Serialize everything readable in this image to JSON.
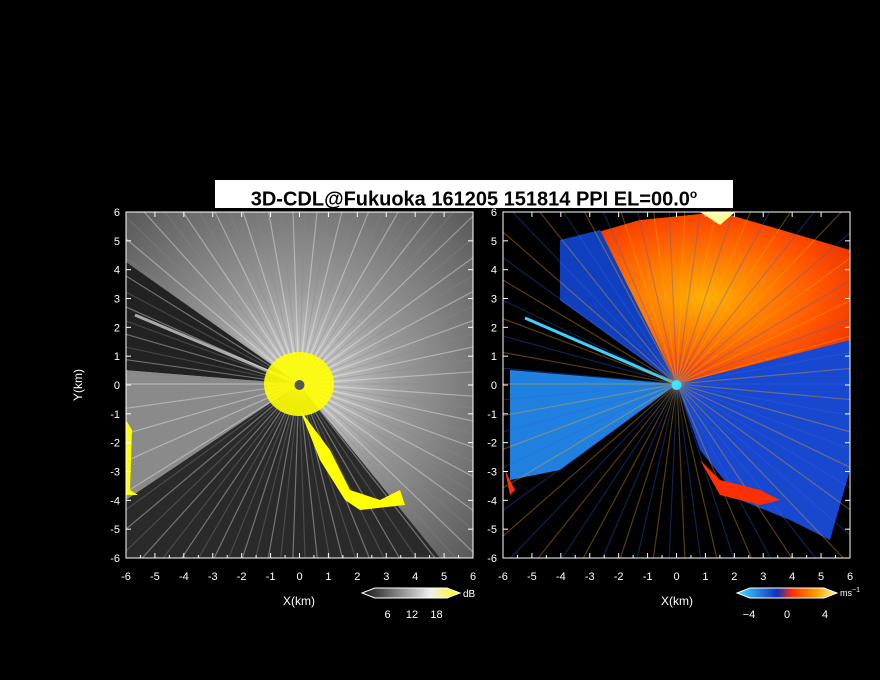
{
  "title": {
    "main": "3D-CDL@Fukuoka 161205 151814 PPI EL=00.0",
    "degree_mark": "o"
  },
  "chart_data": [
    {
      "type": "heatmap",
      "panel": "reflectivity",
      "xlabel": "X(km)",
      "ylabel": "Y(km)",
      "xlim": [
        -6,
        6
      ],
      "ylim": [
        -6,
        6
      ],
      "x_ticks": [
        -6,
        -5,
        -4,
        -3,
        -2,
        -1,
        0,
        1,
        2,
        3,
        4,
        5,
        6
      ],
      "y_ticks": [
        -6,
        -5,
        -4,
        -3,
        -2,
        -1,
        0,
        1,
        2,
        3,
        4,
        5,
        6
      ],
      "colorbar": {
        "unit": "dB",
        "ticks": [
          6,
          12,
          18
        ],
        "range": [
          0,
          24
        ],
        "colors": [
          "#000000",
          "#ffffff",
          "#ffff00"
        ]
      },
      "radar_origin": [
        0,
        0
      ]
    },
    {
      "type": "heatmap",
      "panel": "doppler_velocity",
      "xlabel": "X(km)",
      "ylabel": "",
      "xlim": [
        -6,
        6
      ],
      "ylim": [
        -6,
        6
      ],
      "x_ticks": [
        -6,
        -5,
        -4,
        -3,
        -2,
        -1,
        0,
        1,
        2,
        3,
        4,
        5,
        6
      ],
      "y_ticks": [
        -6,
        -5,
        -4,
        -3,
        -2,
        -1,
        0,
        1,
        2,
        3,
        4,
        5,
        6
      ],
      "colorbar": {
        "unit": "ms",
        "unit_exponent": "−1",
        "ticks": [
          "−4",
          "0",
          "4"
        ],
        "range": [
          -6,
          6
        ],
        "colors": [
          "#40e0ff",
          "#1030c0",
          "#ff3000",
          "#ffa000",
          "#ffff80"
        ]
      },
      "radar_origin": [
        0,
        0
      ]
    }
  ]
}
